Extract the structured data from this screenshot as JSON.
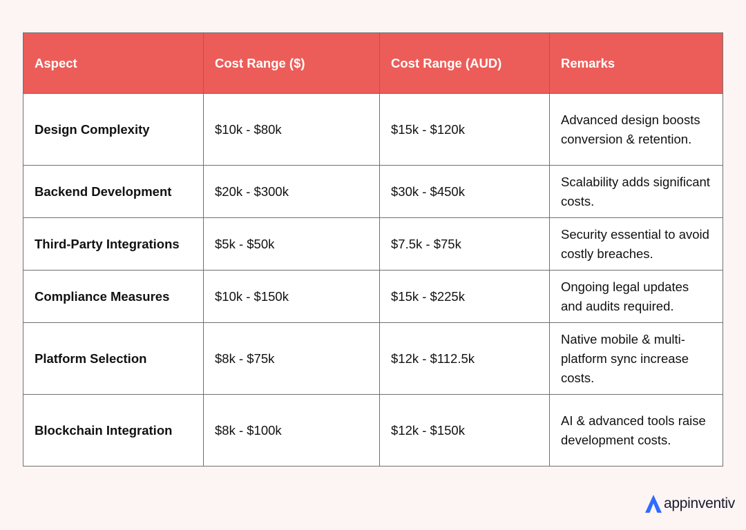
{
  "table": {
    "headers": [
      "Aspect",
      "Cost Range ($)",
      "Cost Range (AUD)",
      "Remarks"
    ],
    "rows": [
      {
        "aspect": "Design Complexity",
        "usd": "$10k - $80k",
        "aud": "$15k - $120k",
        "remarks": "Advanced design boosts conversion & retention."
      },
      {
        "aspect": "Backend Development",
        "usd": "$20k - $300k",
        "aud": "$30k - $450k",
        "remarks": "Scalability adds significant costs."
      },
      {
        "aspect": "Third-Party Integrations",
        "usd": "$5k - $50k",
        "aud": "$7.5k - $75k",
        "remarks": "Security essential to avoid costly breaches."
      },
      {
        "aspect": "Compliance Measures",
        "usd": "$10k - $150k",
        "aud": "$15k - $225k",
        "remarks": "Ongoing legal updates and audits required."
      },
      {
        "aspect": "Platform Selection",
        "usd": "$8k - $75k",
        "aud": "$12k - $112.5k",
        "remarks": "Native mobile & multi-platform sync increase costs."
      },
      {
        "aspect": "Blockchain Integration",
        "usd": "$8k - $100k",
        "aud": "$12k - $150k",
        "remarks": "AI & advanced tools raise development costs."
      }
    ]
  },
  "brand": {
    "name": "appinventiv",
    "icon": "appinventiv-logo-icon",
    "icon_color": "#2f6bff"
  },
  "colors": {
    "header_bg": "#ec5d59",
    "page_bg": "#fdf5f4"
  }
}
